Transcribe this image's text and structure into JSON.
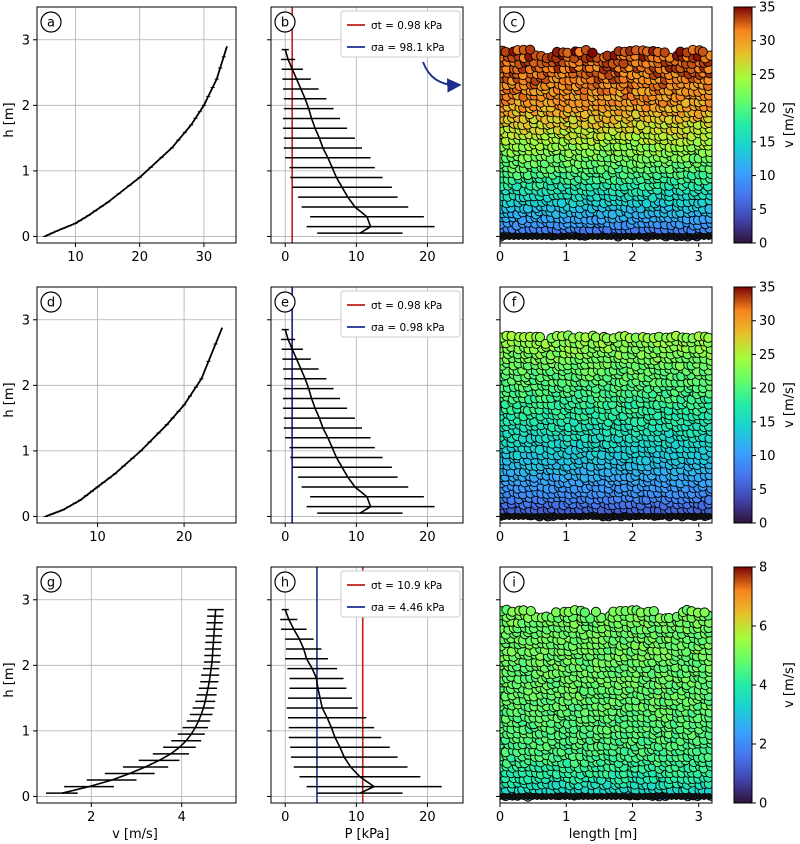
{
  "figure": {
    "rows": [
      {
        "v_label": "",
        "p_label": "",
        "x_label": ""
      },
      {
        "v_label": "",
        "p_label": "",
        "x_label": ""
      },
      {
        "v_label": "v [m/s]",
        "p_label": "P [kPa]",
        "x_label": "length [m]"
      }
    ]
  },
  "chart_data": [
    {
      "panel": "a",
      "type": "line",
      "xlabel": "",
      "ylabel": "h [m]",
      "xlim": [
        4,
        35
      ],
      "ylim": [
        -0.1,
        3.5
      ],
      "xticks": [
        10,
        20,
        30
      ],
      "yticks": [
        0,
        1,
        2,
        3
      ],
      "grid": true,
      "series": [
        {
          "name": "v",
          "x": [
            5.2,
            7,
            10,
            12,
            15,
            20,
            25,
            28,
            30,
            32,
            33.6
          ],
          "y": [
            0,
            0.08,
            0.2,
            0.32,
            0.52,
            0.9,
            1.35,
            1.7,
            2.0,
            2.4,
            2.9
          ]
        }
      ]
    },
    {
      "panel": "b",
      "type": "line",
      "xlabel": "",
      "ylabel": "",
      "xlim": [
        -2,
        25
      ],
      "ylim": [
        -0.1,
        3.5
      ],
      "xticks": [
        0,
        10,
        20
      ],
      "yticks": [
        0,
        1,
        2,
        3
      ],
      "grid": true,
      "legend": [
        {
          "label": "σt = 0.98 kPa",
          "color": "#c0201a",
          "value": 0.98
        },
        {
          "label": "σa = 98.1 kPa",
          "color": "#1c2d8c",
          "value": 98.1
        }
      ],
      "annotation": "arrow pointing to panel c",
      "series": [
        {
          "name": "P",
          "h": [
            2.85,
            2.7,
            2.55,
            2.4,
            2.25,
            2.1,
            1.95,
            1.8,
            1.65,
            1.5,
            1.35,
            1.2,
            1.05,
            0.9,
            0.75,
            0.6,
            0.45,
            0.3,
            0.15,
            0.05
          ],
          "mean": [
            0.0,
            0.4,
            1.0,
            1.6,
            2.2,
            2.8,
            3.3,
            3.7,
            4.2,
            4.8,
            5.3,
            6.0,
            6.6,
            7.2,
            8.0,
            8.8,
            9.8,
            11.5,
            12.0,
            10.5
          ],
          "err": [
            0.5,
            1.0,
            1.5,
            2.0,
            2.5,
            3.0,
            3.5,
            4.0,
            4.5,
            5.0,
            5.5,
            6.0,
            6.0,
            6.5,
            7.0,
            7.0,
            7.5,
            8.0,
            9.0,
            6.0
          ]
        }
      ]
    },
    {
      "panel": "c",
      "type": "scatter",
      "xlabel": "",
      "ylabel": "",
      "xlim": [
        0,
        3.2
      ],
      "ylim": [
        -0.1,
        3.5
      ],
      "xticks": [
        0,
        1,
        2,
        3
      ],
      "yticks": [
        0,
        1,
        2,
        3
      ],
      "colorbar": {
        "label": "v [m/s]",
        "min": 0,
        "max": 35,
        "ticks": [
          0,
          5,
          10,
          15,
          20,
          25,
          30,
          35
        ]
      },
      "profile": {
        "h": [
          0,
          0.2,
          0.5,
          1.0,
          1.5,
          2.0,
          2.5,
          2.9
        ],
        "v": [
          5,
          10,
          14,
          20,
          25,
          30,
          32,
          33.6
        ]
      },
      "fill_top": 2.85
    },
    {
      "panel": "d",
      "type": "line",
      "xlabel": "",
      "ylabel": "h [m]",
      "xlim": [
        3,
        26
      ],
      "ylim": [
        -0.1,
        3.5
      ],
      "xticks": [
        10,
        20
      ],
      "yticks": [
        0,
        1,
        2,
        3
      ],
      "grid": true,
      "series": [
        {
          "name": "v",
          "x": [
            4,
            6,
            8,
            10,
            12,
            15,
            18,
            20,
            22,
            24.4
          ],
          "y": [
            0,
            0.1,
            0.25,
            0.45,
            0.65,
            1.0,
            1.4,
            1.7,
            2.1,
            2.88
          ]
        }
      ]
    },
    {
      "panel": "e",
      "type": "line",
      "xlabel": "",
      "ylabel": "",
      "xlim": [
        -2,
        25
      ],
      "ylim": [
        -0.1,
        3.5
      ],
      "xticks": [
        0,
        10,
        20
      ],
      "yticks": [
        0,
        1,
        2,
        3
      ],
      "grid": true,
      "legend": [
        {
          "label": "σt = 0.98 kPa",
          "color": "#c0201a",
          "value": 0.98
        },
        {
          "label": "σa = 0.98 kPa",
          "color": "#1c2d8c",
          "value": 0.98
        }
      ],
      "series": [
        {
          "name": "P",
          "h": [
            2.85,
            2.7,
            2.55,
            2.4,
            2.25,
            2.1,
            1.95,
            1.8,
            1.65,
            1.5,
            1.35,
            1.2,
            1.05,
            0.9,
            0.75,
            0.6,
            0.45,
            0.3,
            0.15,
            0.05
          ],
          "mean": [
            0.0,
            0.4,
            1.0,
            1.6,
            2.2,
            2.8,
            3.3,
            3.7,
            4.2,
            4.8,
            5.3,
            6.0,
            6.6,
            7.2,
            8.0,
            8.8,
            9.8,
            11.5,
            12.0,
            10.5
          ],
          "err": [
            0.5,
            1.0,
            1.5,
            2.0,
            2.5,
            3.0,
            3.5,
            4.0,
            4.5,
            5.0,
            5.5,
            6.0,
            6.0,
            6.5,
            7.0,
            7.0,
            7.5,
            8.0,
            9.0,
            6.0
          ]
        }
      ]
    },
    {
      "panel": "f",
      "type": "scatter",
      "xlabel": "",
      "ylabel": "",
      "xlim": [
        0,
        3.2
      ],
      "ylim": [
        -0.1,
        3.5
      ],
      "xticks": [
        0,
        1,
        2,
        3
      ],
      "yticks": [
        0,
        1,
        2,
        3
      ],
      "colorbar": {
        "label": "v [m/s]",
        "min": 0,
        "max": 35,
        "ticks": [
          0,
          5,
          10,
          15,
          20,
          25,
          30,
          35
        ]
      },
      "profile": {
        "h": [
          0,
          0.3,
          0.7,
          1.2,
          1.7,
          2.2,
          2.6,
          2.88
        ],
        "v": [
          4,
          8.5,
          12,
          15.5,
          18.5,
          21,
          23,
          24.4
        ]
      },
      "fill_top": 2.82
    },
    {
      "panel": "g",
      "type": "line",
      "xlabel": "v [m/s]",
      "ylabel": "h [m]",
      "xlim": [
        0.8,
        5.2
      ],
      "ylim": [
        -0.1,
        3.5
      ],
      "xticks": [
        2,
        4
      ],
      "yticks": [
        0,
        1,
        2,
        3
      ],
      "grid": true,
      "series": [
        {
          "name": "v",
          "h": [
            2.85,
            2.75,
            2.65,
            2.55,
            2.45,
            2.35,
            2.25,
            2.15,
            2.05,
            1.95,
            1.85,
            1.75,
            1.65,
            1.55,
            1.45,
            1.35,
            1.25,
            1.15,
            1.05,
            0.95,
            0.85,
            0.75,
            0.65,
            0.55,
            0.45,
            0.35,
            0.25,
            0.15,
            0.05
          ],
          "mean": [
            4.75,
            4.74,
            4.73,
            4.72,
            4.71,
            4.7,
            4.69,
            4.68,
            4.67,
            4.65,
            4.63,
            4.61,
            4.58,
            4.55,
            4.52,
            4.48,
            4.43,
            4.37,
            4.3,
            4.21,
            4.1,
            3.95,
            3.76,
            3.5,
            3.2,
            2.85,
            2.45,
            1.95,
            1.35
          ],
          "err": [
            0.18,
            0.18,
            0.18,
            0.18,
            0.18,
            0.18,
            0.18,
            0.18,
            0.18,
            0.18,
            0.2,
            0.2,
            0.2,
            0.22,
            0.22,
            0.24,
            0.25,
            0.26,
            0.28,
            0.3,
            0.33,
            0.36,
            0.4,
            0.45,
            0.5,
            0.55,
            0.55,
            0.55,
            0.35
          ]
        }
      ]
    },
    {
      "panel": "h",
      "type": "line",
      "xlabel": "P [kPa]",
      "ylabel": "",
      "xlim": [
        -2,
        25
      ],
      "ylim": [
        -0.1,
        3.5
      ],
      "xticks": [
        0,
        10,
        20
      ],
      "yticks": [
        0,
        1,
        2,
        3
      ],
      "grid": true,
      "legend": [
        {
          "label": "σt = 10.9 kPa",
          "color": "#c0201a",
          "value": 10.9
        },
        {
          "label": "σa = 4.46 kPa",
          "color": "#1c2d8c",
          "value": 4.46
        }
      ],
      "series": [
        {
          "name": "P",
          "h": [
            2.85,
            2.7,
            2.55,
            2.4,
            2.25,
            2.1,
            1.95,
            1.8,
            1.65,
            1.5,
            1.35,
            1.2,
            1.05,
            0.9,
            0.75,
            0.6,
            0.45,
            0.3,
            0.15,
            0.05
          ],
          "mean": [
            0.0,
            0.5,
            1.2,
            2.0,
            2.6,
            3.0,
            3.8,
            4.4,
            4.6,
            4.9,
            5.2,
            5.9,
            6.5,
            7.0,
            7.7,
            8.3,
            9.2,
            10.5,
            12.5,
            10.5
          ],
          "err": [
            0.5,
            1.2,
            1.8,
            2.0,
            2.5,
            3.0,
            3.5,
            3.8,
            4.0,
            4.5,
            5.0,
            5.5,
            6.0,
            6.5,
            7.0,
            7.5,
            8.0,
            8.5,
            9.5,
            6.0
          ]
        }
      ]
    },
    {
      "panel": "i",
      "type": "scatter",
      "xlabel": "length [m]",
      "ylabel": "",
      "xlim": [
        0,
        3.2
      ],
      "ylim": [
        -0.1,
        3.5
      ],
      "xticks": [
        0,
        1,
        2,
        3
      ],
      "yticks": [
        0,
        1,
        2,
        3
      ],
      "colorbar": {
        "label": "v [m/s]",
        "min": 0,
        "max": 8,
        "ticks": [
          0,
          2,
          4,
          6,
          8
        ]
      },
      "profile": {
        "h": [
          0,
          0.1,
          0.3,
          0.6,
          1.0,
          1.5,
          2.0,
          2.9
        ],
        "v": [
          2.5,
          3.5,
          4.0,
          4.4,
          4.6,
          4.8,
          4.9,
          5.0
        ]
      },
      "fill_top": 2.85
    }
  ]
}
